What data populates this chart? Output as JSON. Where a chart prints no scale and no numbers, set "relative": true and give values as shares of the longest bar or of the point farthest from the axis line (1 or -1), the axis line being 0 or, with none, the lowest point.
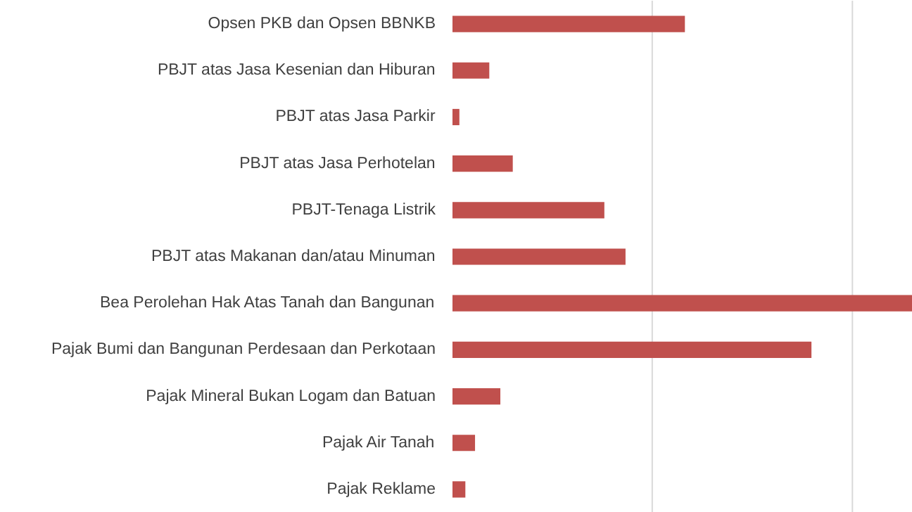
{
  "chart_data": {
    "type": "bar",
    "orientation": "horizontal",
    "relative": true,
    "ref_lines": [
      {
        "axis": "x",
        "value": 0.434,
        "color": "#d9d9d9"
      },
      {
        "axis": "x",
        "value": 0.869,
        "color": "#d9d9d9"
      }
    ],
    "categories": [
      "Opsen PKB dan Opsen BBNKB",
      "PBJT atas Jasa Kesenian dan Hiburan",
      "PBJT atas Jasa Parkir",
      "PBJT atas Jasa Perhotelan",
      "PBJT-Tenaga Listrik",
      "PBJT atas Makanan dan/atau Minuman",
      "Bea Perolehan Hak Atas Tanah dan Bangunan",
      "Pajak Bumi dan Bangunan Perdesaan dan Perkotaan",
      "Pajak Mineral Bukan Logam dan Batuan",
      "Pajak Air Tanah",
      "Pajak Reklame"
    ],
    "values": [
      0.505,
      0.08,
      0.015,
      0.131,
      0.33,
      0.376,
      1,
      0.78,
      0.104,
      0.049,
      0.028
    ],
    "color": "#c0504d"
  }
}
